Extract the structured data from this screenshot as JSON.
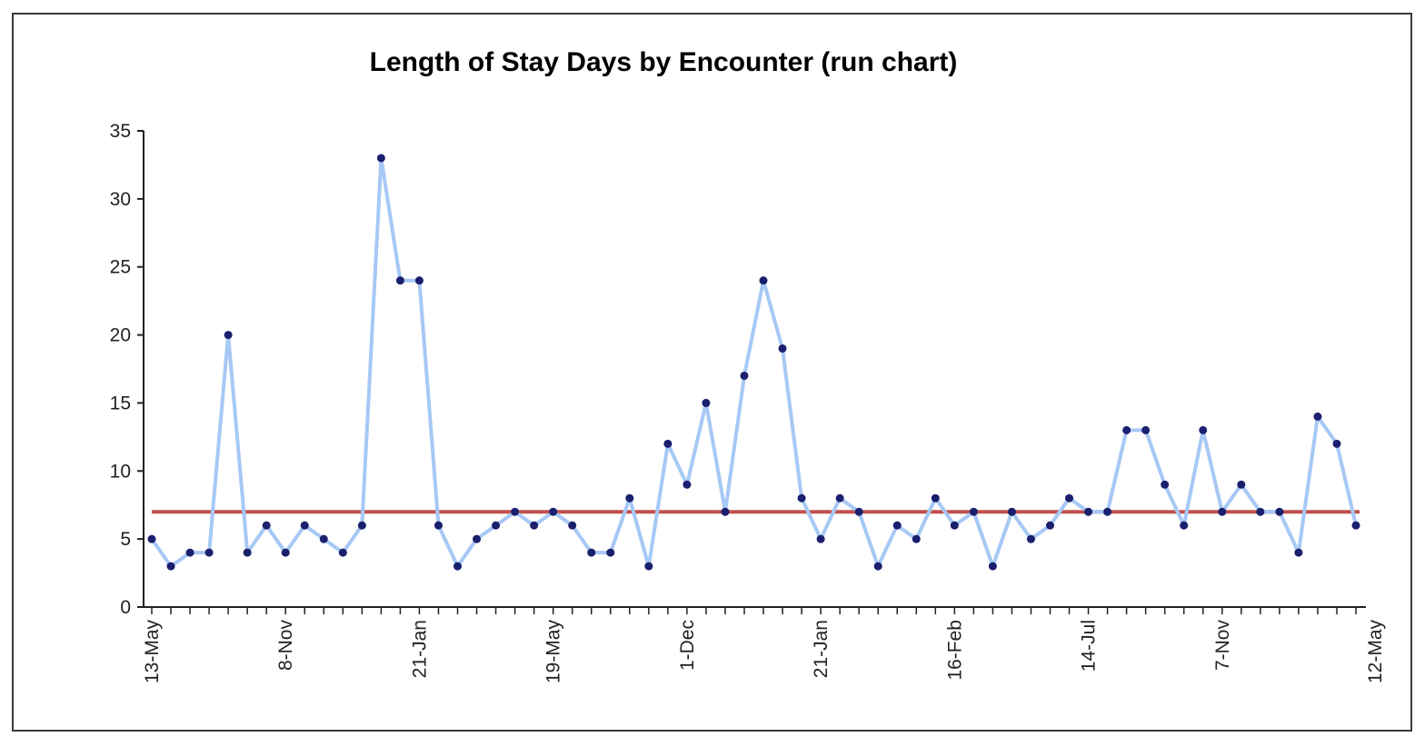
{
  "chart_data": {
    "type": "line",
    "title": "Length of Stay Days by Encounter (run chart)",
    "xlabel": "",
    "ylabel": "",
    "ylim": [
      0,
      35
    ],
    "y_ticks": [
      "0",
      "5",
      "10",
      "15",
      "20",
      "25",
      "30",
      "35"
    ],
    "x_tick_labels": [
      "13-May",
      "8-Nov",
      "21-Jan",
      "19-May",
      "1-Dec",
      "21-Jan",
      "16-Feb",
      "14-Jul",
      "7-Nov",
      "12-May"
    ],
    "x_tick_label_point_index": [
      0,
      7,
      14,
      21,
      28,
      35,
      42,
      49,
      56,
      64
    ],
    "grid": false,
    "legend": "none",
    "series": [
      {
        "values": [
          5,
          3,
          4,
          4,
          20,
          4,
          6,
          4,
          6,
          5,
          4,
          6,
          33,
          24,
          24,
          6,
          3,
          5,
          6,
          7,
          6,
          7,
          6,
          4,
          4,
          8,
          3,
          12,
          9,
          15,
          7,
          17,
          24,
          19,
          8,
          5,
          8,
          7,
          3,
          6,
          5,
          8,
          6,
          7,
          3,
          7,
          5,
          6,
          8,
          7,
          7,
          13,
          13,
          9,
          6,
          13,
          7,
          9,
          7,
          7,
          4,
          14,
          12,
          6
        ],
        "line_color": "#a6c8f5",
        "marker_color": "#1a1f6e"
      },
      {
        "type": "reference-line",
        "value": 7,
        "line_color": "#c0504d"
      }
    ]
  }
}
